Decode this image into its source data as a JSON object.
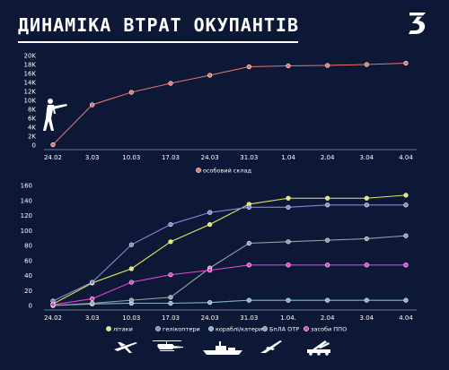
{
  "title": "ДИНАМІКА ВТРАТ ОКУПАНТІВ",
  "logo_icon": "number-3-logo-icon",
  "colors": {
    "background": "#0d1836",
    "personnel": "#e8736c",
    "aircraft": "#e3e85c",
    "helicopters": "#8a86d6",
    "ships": "#7fb6c8",
    "drones": "#9aa0a8",
    "air_defense": "#e63fd0"
  },
  "chart_data": [
    {
      "type": "line",
      "categories": [
        "24.02",
        "3.03",
        "10.03",
        "17.03",
        "24.03",
        "31.03",
        "1.04",
        "2.04",
        "3.04",
        "4.04"
      ],
      "y_ticks": [
        "0",
        "2K",
        "4K",
        "6K",
        "8K",
        "10K",
        "12K",
        "14K",
        "16K",
        "18K",
        "20K"
      ],
      "ylim": [
        0,
        20000
      ],
      "grid": false,
      "legend": "bottom-center",
      "icon": "soldier-icon",
      "series": [
        {
          "name": "особовий склад",
          "color": "#e8736c",
          "values": [
            100,
            9000,
            11800,
            13800,
            15600,
            17500,
            17700,
            17800,
            18000,
            18300
          ]
        }
      ]
    },
    {
      "type": "line",
      "categories": [
        "24.02",
        "3.03",
        "10.03",
        "17.03",
        "24.03",
        "31.03",
        "1.04.",
        "2.04",
        "3.04",
        "4.04"
      ],
      "y_ticks": [
        "0",
        "20",
        "40",
        "60",
        "80",
        "100",
        "120",
        "140",
        "160"
      ],
      "ylim": [
        0,
        160
      ],
      "grid": false,
      "legend": "bottom-center",
      "legend_icons": [
        "airplane-icon",
        "helicopter-icon",
        "warship-icon",
        "drone-icon",
        "air-defense-icon"
      ],
      "series": [
        {
          "name": "літаки",
          "color": "#e3e85c",
          "values": [
            2,
            30,
            49,
            85,
            108,
            135,
            143,
            143,
            143,
            147
          ]
        },
        {
          "name": "гелікоптери",
          "color": "#8a86d6",
          "values": [
            6,
            31,
            81,
            108,
            124,
            131,
            131,
            134,
            134,
            134
          ]
        },
        {
          "name": "кораблі/катери",
          "color": "#7fb6c8",
          "values": [
            0,
            2,
            3,
            3,
            4,
            7,
            7,
            7,
            7,
            7
          ]
        },
        {
          "name": "БпЛА ОТР",
          "color": "#9aa0a8",
          "values": [
            0,
            3,
            7,
            11,
            50,
            83,
            85,
            87,
            89,
            93
          ]
        },
        {
          "name": "засоби ППО",
          "color": "#e63fd0",
          "values": [
            1,
            9,
            31,
            41,
            47,
            54,
            54,
            54,
            54,
            54
          ]
        }
      ]
    }
  ]
}
